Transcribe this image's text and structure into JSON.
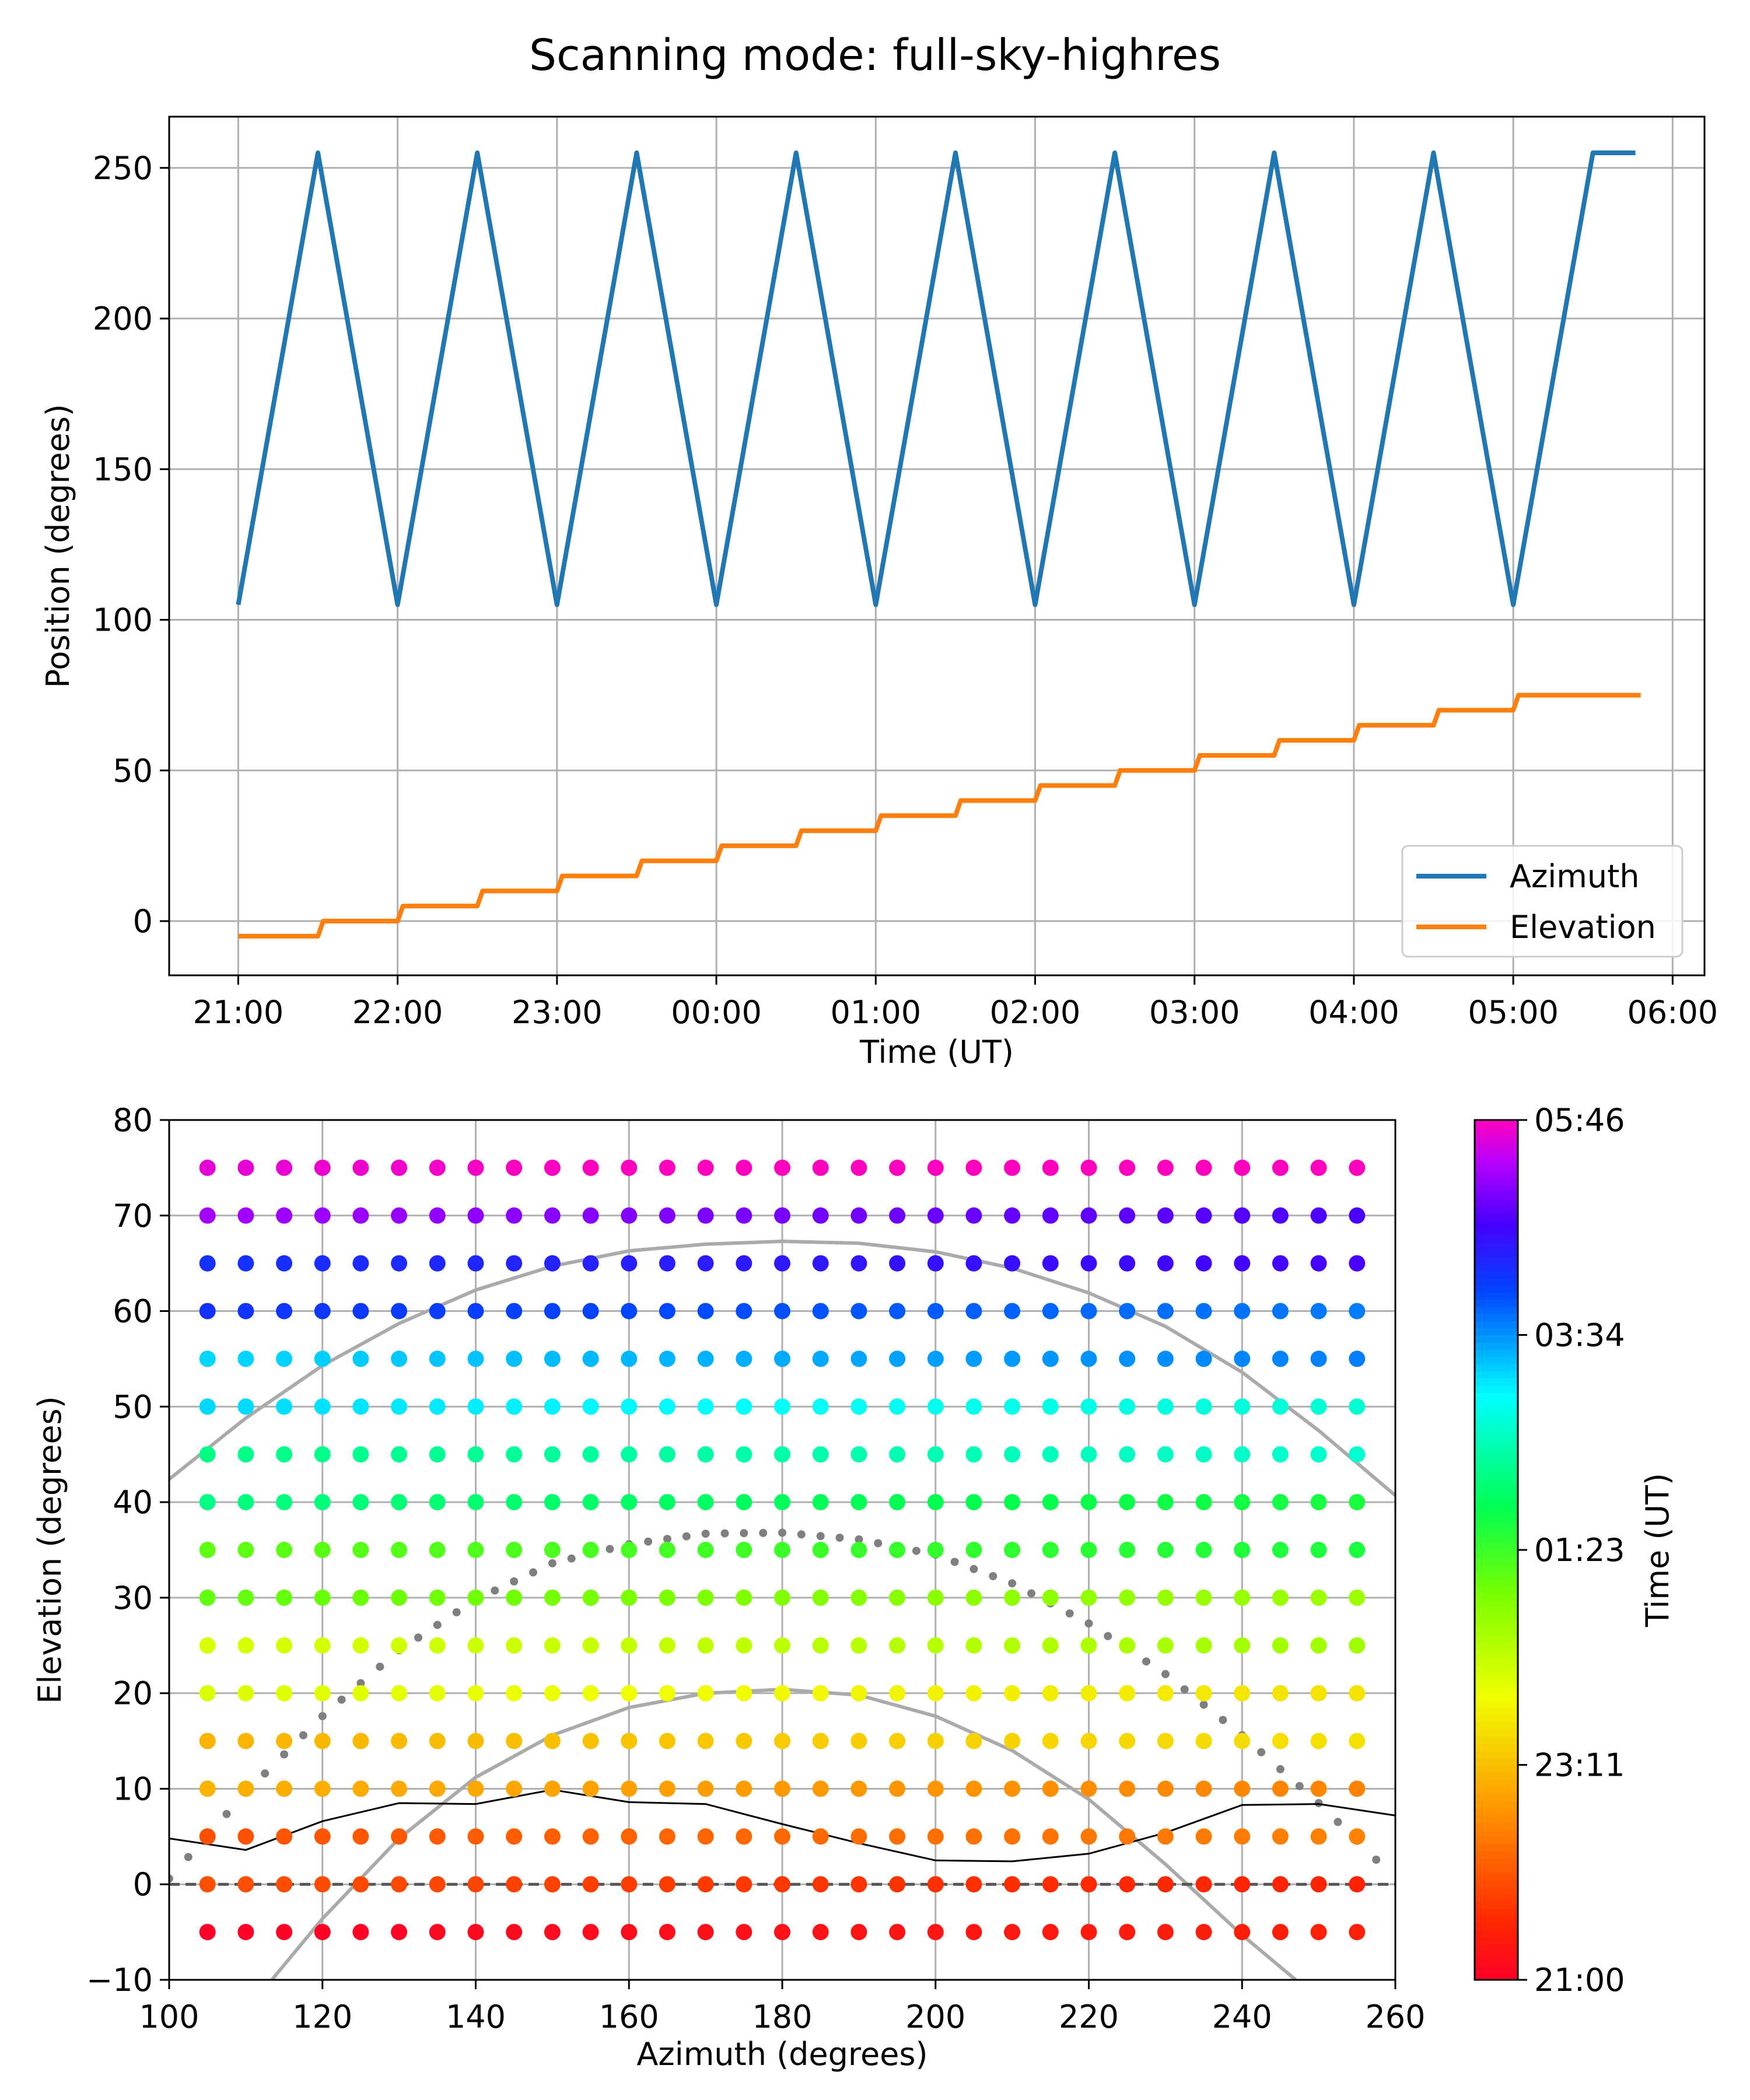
{
  "title": "Scanning mode: full-sky-highres",
  "chart_data": [
    {
      "type": "line",
      "xlabel": "Time (UT)",
      "ylabel": "Position (degrees)",
      "xlim": [
        "20:34",
        "06:12"
      ],
      "ylim": [
        -18,
        267
      ],
      "xticks": [
        "21:00",
        "22:00",
        "23:00",
        "00:00",
        "01:00",
        "02:00",
        "03:00",
        "04:00",
        "05:00",
        "06:00"
      ],
      "yticks": [
        0,
        50,
        100,
        150,
        200,
        250
      ],
      "grid": true,
      "legend": "lower-right",
      "series": [
        {
          "name": "Azimuth",
          "color": "#1f77b4",
          "x": [
            "21:00",
            "21:30",
            "22:00",
            "22:30",
            "23:00",
            "23:30",
            "00:00",
            "00:30",
            "01:00",
            "01:30",
            "02:00",
            "02:30",
            "03:00",
            "03:30",
            "04:00",
            "04:30",
            "05:00",
            "05:30",
            "05:46"
          ],
          "y": [
            105,
            255,
            105,
            255,
            105,
            255,
            105,
            255,
            105,
            255,
            105,
            255,
            105,
            255,
            105,
            255,
            105,
            255,
            255
          ],
          "x_exact": [
            "21:00",
            "21:30",
            "22:00",
            "22:30",
            "23:00",
            "23:30",
            "00:00",
            "00:30",
            "01:00",
            "01:30",
            "02:00",
            "02:30",
            "03:00",
            "03:30",
            "04:00",
            "04:30",
            "05:00",
            "05:30",
            "05:46"
          ]
        },
        {
          "name": "Elevation",
          "color": "#ff7f0e",
          "x": [
            "21:00",
            "21:30",
            "22:00",
            "22:30",
            "23:00",
            "23:30",
            "00:00",
            "00:30",
            "01:00",
            "01:30",
            "02:00",
            "02:30",
            "03:00",
            "03:30",
            "04:00",
            "04:30",
            "05:00",
            "05:30",
            "05:46"
          ],
          "y": [
            -5,
            0,
            5,
            10,
            15,
            20,
            25,
            30,
            35,
            40,
            45,
            50,
            55,
            60,
            65,
            70,
            75,
            75,
            75
          ]
        }
      ]
    },
    {
      "type": "scatter",
      "xlabel": "Azimuth (degrees)",
      "ylabel": "Elevation (degrees)",
      "xlim": [
        100,
        260
      ],
      "ylim": [
        -10,
        80
      ],
      "xticks": [
        100,
        120,
        140,
        160,
        180,
        200,
        220,
        240,
        260
      ],
      "yticks": [
        -10,
        0,
        10,
        20,
        30,
        40,
        50,
        60,
        70,
        80
      ],
      "grid": true,
      "scan_grid": {
        "az": [
          105,
          255,
          5
        ],
        "el": [
          -5,
          75,
          5
        ]
      },
      "colorbar": {
        "label": "Time (UT)",
        "ticks": [
          "21:00",
          "23:11",
          "01:23",
          "03:34",
          "05:46"
        ],
        "colormap": "gist_rainbow"
      },
      "overlays": {
        "horizon_line": [
          [
            100,
            4.8
          ],
          [
            110,
            3.6
          ],
          [
            120,
            6.6
          ],
          [
            130,
            8.5
          ],
          [
            140,
            8.4
          ],
          [
            150,
            9.9
          ],
          [
            160,
            8.6
          ],
          [
            170,
            8.4
          ],
          [
            180,
            6.3
          ],
          [
            190,
            4.3
          ],
          [
            200,
            2.5
          ],
          [
            210,
            2.4
          ],
          [
            220,
            3.2
          ],
          [
            230,
            5.4
          ],
          [
            240,
            8.3
          ],
          [
            250,
            8.4
          ],
          [
            260,
            7.2
          ]
        ],
        "upper_arc": [
          [
            100,
            42.4
          ],
          [
            110,
            48.8
          ],
          [
            120,
            54.3
          ],
          [
            130,
            58.7
          ],
          [
            140,
            62.2
          ],
          [
            150,
            64.7
          ],
          [
            160,
            66.3
          ],
          [
            170,
            67.0
          ],
          [
            180,
            67.3
          ],
          [
            190,
            67.1
          ],
          [
            200,
            66.2
          ],
          [
            210,
            64.5
          ],
          [
            220,
            61.9
          ],
          [
            230,
            58.4
          ],
          [
            240,
            53.6
          ],
          [
            250,
            47.5
          ],
          [
            260,
            40.7
          ]
        ],
        "lower_arc": [
          [
            113.4,
            -10
          ],
          [
            120,
            -3.6
          ],
          [
            130,
            4.8
          ],
          [
            140,
            11.2
          ],
          [
            150,
            15.6
          ],
          [
            160,
            18.5
          ],
          [
            170,
            20.0
          ],
          [
            180,
            20.4
          ],
          [
            190,
            19.8
          ],
          [
            200,
            17.6
          ],
          [
            210,
            14.0
          ],
          [
            220,
            8.9
          ],
          [
            230,
            2.1
          ],
          [
            240,
            -5.3
          ],
          [
            247,
            -10
          ]
        ],
        "dotted_arc": [
          [
            100,
            0.6
          ],
          [
            110,
            9.6
          ],
          [
            120,
            17.6
          ],
          [
            130,
            24.5
          ],
          [
            140,
            29.8
          ],
          [
            150,
            33.6
          ],
          [
            160,
            35.6
          ],
          [
            170,
            36.7
          ],
          [
            180,
            36.8
          ],
          [
            190,
            36.1
          ],
          [
            200,
            34.5
          ],
          [
            210,
            31.5
          ],
          [
            220,
            27.3
          ],
          [
            230,
            22.0
          ],
          [
            240,
            15.6
          ],
          [
            250,
            8.5
          ],
          [
            260,
            0.6
          ]
        ]
      }
    }
  ]
}
